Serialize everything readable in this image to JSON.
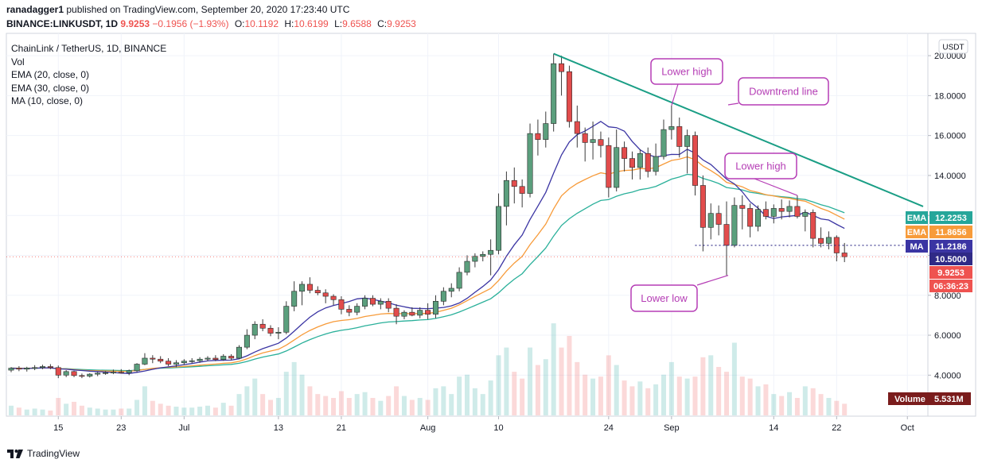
{
  "header": {
    "publisher": "ranadagger1",
    "published_text": "published on TradingView.com, September 20, 2020 17:23:40 UTC",
    "symbol_line": "BINANCE:LINKUSDT, 1D",
    "price": "9.9253",
    "change": "−0.1956 (−1.93%)",
    "o_label": "O:",
    "o_value": "10.1192",
    "h_label": "H:",
    "h_value": "10.6199",
    "l_label": "L:",
    "l_value": "9.6588",
    "c_label": "C:",
    "c_value": "9.9253"
  },
  "legend": {
    "title": "ChainLink / TetherUS, 1D, BINANCE",
    "vol": "Vol",
    "ema20": "EMA (20, close, 0)",
    "ema30": "EMA (30, close, 0)",
    "ma10": "MA (10, close, 0)"
  },
  "currency_button": "USDT",
  "footer": {
    "brand": "TradingView"
  },
  "colors": {
    "up": "#26a69a",
    "down": "#ef5350",
    "candle_up_body": "#5b9f7d",
    "candle_down_body": "#e24c4c",
    "ema20": "#f79b3a",
    "ema30": "#2ab09a",
    "ma10": "#3b35a3",
    "trend": "#1a9e85",
    "callout": "#b53db5"
  },
  "chart_data": {
    "type": "candlestick",
    "title": "ChainLink / TetherUS, 1D, BINANCE",
    "ylim": [
      2.9,
      20.6
    ],
    "y_ticks": [
      "20.0000",
      "18.0000",
      "16.0000",
      "14.0000",
      "12.0000",
      "10.0000",
      "8.0000",
      "6.0000",
      "4.0000"
    ],
    "x_ticks": [
      "15",
      "23",
      "Jul",
      "13",
      "21",
      "Aug",
      "10",
      "24",
      "Sep",
      "14",
      "22",
      "Oct"
    ],
    "date_range": [
      "2020-06-09",
      "2020-10-03"
    ],
    "candles": [
      {
        "date": "2020-06-09",
        "o": 4.25,
        "h": 4.4,
        "l": 4.15,
        "c": 4.35
      },
      {
        "date": "2020-06-10",
        "o": 4.35,
        "h": 4.45,
        "l": 4.2,
        "c": 4.3
      },
      {
        "date": "2020-06-11",
        "o": 4.3,
        "h": 4.42,
        "l": 4.18,
        "c": 4.36
      },
      {
        "date": "2020-06-12",
        "o": 4.36,
        "h": 4.5,
        "l": 4.25,
        "c": 4.38
      },
      {
        "date": "2020-06-13",
        "o": 4.38,
        "h": 4.52,
        "l": 4.3,
        "c": 4.43
      },
      {
        "date": "2020-06-14",
        "o": 4.43,
        "h": 4.55,
        "l": 4.3,
        "c": 4.38
      },
      {
        "date": "2020-06-15",
        "o": 4.38,
        "h": 4.48,
        "l": 3.85,
        "c": 4.0
      },
      {
        "date": "2020-06-16",
        "o": 4.0,
        "h": 4.25,
        "l": 3.9,
        "c": 4.18
      },
      {
        "date": "2020-06-17",
        "o": 4.18,
        "h": 4.22,
        "l": 3.9,
        "c": 3.98
      },
      {
        "date": "2020-06-18",
        "o": 3.98,
        "h": 4.08,
        "l": 3.85,
        "c": 3.95
      },
      {
        "date": "2020-06-19",
        "o": 3.95,
        "h": 4.1,
        "l": 3.88,
        "c": 4.05
      },
      {
        "date": "2020-06-20",
        "o": 4.05,
        "h": 4.15,
        "l": 3.95,
        "c": 4.1
      },
      {
        "date": "2020-06-21",
        "o": 4.1,
        "h": 4.2,
        "l": 4.02,
        "c": 4.12
      },
      {
        "date": "2020-06-22",
        "o": 4.12,
        "h": 4.28,
        "l": 4.05,
        "c": 4.15
      },
      {
        "date": "2020-06-23",
        "o": 4.15,
        "h": 4.3,
        "l": 4.08,
        "c": 4.12
      },
      {
        "date": "2020-06-24",
        "o": 4.12,
        "h": 4.28,
        "l": 4.0,
        "c": 4.22
      },
      {
        "date": "2020-06-25",
        "o": 4.22,
        "h": 4.6,
        "l": 4.15,
        "c": 4.55
      },
      {
        "date": "2020-06-26",
        "o": 4.55,
        "h": 5.1,
        "l": 4.5,
        "c": 4.85
      },
      {
        "date": "2020-06-27",
        "o": 4.85,
        "h": 5.0,
        "l": 4.6,
        "c": 4.8
      },
      {
        "date": "2020-06-28",
        "o": 4.8,
        "h": 4.95,
        "l": 4.6,
        "c": 4.7
      },
      {
        "date": "2020-06-29",
        "o": 4.7,
        "h": 4.85,
        "l": 4.45,
        "c": 4.55
      },
      {
        "date": "2020-06-30",
        "o": 4.55,
        "h": 4.75,
        "l": 4.4,
        "c": 4.62
      },
      {
        "date": "2020-07-01",
        "o": 4.62,
        "h": 4.8,
        "l": 4.52,
        "c": 4.7
      },
      {
        "date": "2020-07-02",
        "o": 4.7,
        "h": 4.85,
        "l": 4.6,
        "c": 4.72
      },
      {
        "date": "2020-07-03",
        "o": 4.72,
        "h": 4.9,
        "l": 4.62,
        "c": 4.8
      },
      {
        "date": "2020-07-04",
        "o": 4.8,
        "h": 4.95,
        "l": 4.7,
        "c": 4.85
      },
      {
        "date": "2020-07-05",
        "o": 4.85,
        "h": 5.0,
        "l": 4.7,
        "c": 4.78
      },
      {
        "date": "2020-07-06",
        "o": 4.78,
        "h": 5.05,
        "l": 4.72,
        "c": 4.95
      },
      {
        "date": "2020-07-07",
        "o": 4.95,
        "h": 5.05,
        "l": 4.75,
        "c": 4.85
      },
      {
        "date": "2020-07-08",
        "o": 4.85,
        "h": 5.5,
        "l": 4.8,
        "c": 5.4
      },
      {
        "date": "2020-07-09",
        "o": 5.4,
        "h": 6.3,
        "l": 5.3,
        "c": 6.0
      },
      {
        "date": "2020-07-10",
        "o": 6.0,
        "h": 6.7,
        "l": 5.8,
        "c": 6.55
      },
      {
        "date": "2020-07-11",
        "o": 6.55,
        "h": 6.8,
        "l": 6.2,
        "c": 6.35
      },
      {
        "date": "2020-07-12",
        "o": 6.35,
        "h": 6.5,
        "l": 5.95,
        "c": 6.1
      },
      {
        "date": "2020-07-13",
        "o": 6.1,
        "h": 6.4,
        "l": 5.8,
        "c": 6.15
      },
      {
        "date": "2020-07-14",
        "o": 6.15,
        "h": 7.7,
        "l": 6.05,
        "c": 7.45
      },
      {
        "date": "2020-07-15",
        "o": 7.45,
        "h": 8.7,
        "l": 7.2,
        "c": 8.2
      },
      {
        "date": "2020-07-16",
        "o": 8.2,
        "h": 8.7,
        "l": 7.5,
        "c": 8.55
      },
      {
        "date": "2020-07-17",
        "o": 8.55,
        "h": 8.9,
        "l": 8.1,
        "c": 8.25
      },
      {
        "date": "2020-07-18",
        "o": 8.25,
        "h": 8.45,
        "l": 8.0,
        "c": 8.12
      },
      {
        "date": "2020-07-19",
        "o": 8.12,
        "h": 8.3,
        "l": 7.6,
        "c": 7.95
      },
      {
        "date": "2020-07-20",
        "o": 7.95,
        "h": 8.05,
        "l": 7.5,
        "c": 7.78
      },
      {
        "date": "2020-07-21",
        "o": 7.78,
        "h": 7.95,
        "l": 7.05,
        "c": 7.3
      },
      {
        "date": "2020-07-22",
        "o": 7.3,
        "h": 7.5,
        "l": 6.95,
        "c": 7.15
      },
      {
        "date": "2020-07-23",
        "o": 7.15,
        "h": 7.6,
        "l": 7.0,
        "c": 7.45
      },
      {
        "date": "2020-07-24",
        "o": 7.45,
        "h": 8.0,
        "l": 7.3,
        "c": 7.85
      },
      {
        "date": "2020-07-25",
        "o": 7.85,
        "h": 8.0,
        "l": 7.45,
        "c": 7.55
      },
      {
        "date": "2020-07-26",
        "o": 7.55,
        "h": 7.85,
        "l": 7.3,
        "c": 7.7
      },
      {
        "date": "2020-07-27",
        "o": 7.7,
        "h": 7.85,
        "l": 7.15,
        "c": 7.35
      },
      {
        "date": "2020-07-28",
        "o": 7.35,
        "h": 7.55,
        "l": 6.55,
        "c": 6.95
      },
      {
        "date": "2020-07-29",
        "o": 6.95,
        "h": 7.25,
        "l": 6.8,
        "c": 7.15
      },
      {
        "date": "2020-07-30",
        "o": 7.15,
        "h": 7.4,
        "l": 6.95,
        "c": 7.0
      },
      {
        "date": "2020-07-31",
        "o": 7.0,
        "h": 7.4,
        "l": 6.85,
        "c": 7.25
      },
      {
        "date": "2020-08-01",
        "o": 7.25,
        "h": 7.6,
        "l": 6.8,
        "c": 7.05
      },
      {
        "date": "2020-08-02",
        "o": 7.05,
        "h": 8.0,
        "l": 6.85,
        "c": 7.7
      },
      {
        "date": "2020-08-03",
        "o": 7.7,
        "h": 8.4,
        "l": 7.5,
        "c": 8.2
      },
      {
        "date": "2020-08-04",
        "o": 8.2,
        "h": 8.6,
        "l": 7.9,
        "c": 8.35
      },
      {
        "date": "2020-08-05",
        "o": 8.35,
        "h": 9.4,
        "l": 8.2,
        "c": 9.15
      },
      {
        "date": "2020-08-06",
        "o": 9.15,
        "h": 10.0,
        "l": 9.0,
        "c": 9.7
      },
      {
        "date": "2020-08-07",
        "o": 9.7,
        "h": 10.1,
        "l": 9.4,
        "c": 9.95
      },
      {
        "date": "2020-08-08",
        "o": 9.95,
        "h": 10.2,
        "l": 9.7,
        "c": 10.05
      },
      {
        "date": "2020-08-09",
        "o": 10.05,
        "h": 10.8,
        "l": 9.0,
        "c": 10.25
      },
      {
        "date": "2020-08-10",
        "o": 10.25,
        "h": 13.1,
        "l": 10.05,
        "c": 12.45
      },
      {
        "date": "2020-08-11",
        "o": 12.45,
        "h": 14.2,
        "l": 11.5,
        "c": 13.75
      },
      {
        "date": "2020-08-12",
        "o": 13.75,
        "h": 14.4,
        "l": 12.6,
        "c": 13.45
      },
      {
        "date": "2020-08-13",
        "o": 13.45,
        "h": 13.8,
        "l": 12.4,
        "c": 13.1
      },
      {
        "date": "2020-08-14",
        "o": 13.1,
        "h": 16.6,
        "l": 12.9,
        "c": 16.1
      },
      {
        "date": "2020-08-15",
        "o": 16.1,
        "h": 16.8,
        "l": 15.0,
        "c": 15.8
      },
      {
        "date": "2020-08-16",
        "o": 15.8,
        "h": 17.2,
        "l": 15.4,
        "c": 16.6
      },
      {
        "date": "2020-08-17",
        "o": 16.6,
        "h": 20.1,
        "l": 16.2,
        "c": 19.6
      },
      {
        "date": "2020-08-18",
        "o": 19.6,
        "h": 20.0,
        "l": 18.0,
        "c": 19.2
      },
      {
        "date": "2020-08-19",
        "o": 19.2,
        "h": 19.5,
        "l": 16.4,
        "c": 16.7
      },
      {
        "date": "2020-08-20",
        "o": 16.7,
        "h": 17.5,
        "l": 15.4,
        "c": 16.1
      },
      {
        "date": "2020-08-21",
        "o": 16.1,
        "h": 16.4,
        "l": 14.7,
        "c": 15.65
      },
      {
        "date": "2020-08-22",
        "o": 15.65,
        "h": 16.7,
        "l": 14.8,
        "c": 15.8
      },
      {
        "date": "2020-08-23",
        "o": 15.8,
        "h": 16.2,
        "l": 14.9,
        "c": 15.5
      },
      {
        "date": "2020-08-24",
        "o": 15.5,
        "h": 15.9,
        "l": 12.9,
        "c": 13.4
      },
      {
        "date": "2020-08-25",
        "o": 13.4,
        "h": 16.3,
        "l": 13.2,
        "c": 15.4
      },
      {
        "date": "2020-08-26",
        "o": 15.4,
        "h": 15.7,
        "l": 14.2,
        "c": 14.85
      },
      {
        "date": "2020-08-27",
        "o": 14.85,
        "h": 15.2,
        "l": 13.8,
        "c": 14.4
      },
      {
        "date": "2020-08-28",
        "o": 14.4,
        "h": 15.3,
        "l": 13.8,
        "c": 15.1
      },
      {
        "date": "2020-08-29",
        "o": 15.1,
        "h": 15.4,
        "l": 13.9,
        "c": 14.2
      },
      {
        "date": "2020-08-30",
        "o": 14.2,
        "h": 15.6,
        "l": 14.0,
        "c": 14.95
      },
      {
        "date": "2020-08-31",
        "o": 14.95,
        "h": 16.8,
        "l": 14.8,
        "c": 16.3
      },
      {
        "date": "2020-09-01",
        "o": 16.3,
        "h": 17.5,
        "l": 15.8,
        "c": 16.45
      },
      {
        "date": "2020-09-02",
        "o": 16.45,
        "h": 16.9,
        "l": 14.9,
        "c": 15.45
      },
      {
        "date": "2020-09-03",
        "o": 15.45,
        "h": 16.3,
        "l": 14.1,
        "c": 16.0
      },
      {
        "date": "2020-09-04",
        "o": 16.0,
        "h": 16.2,
        "l": 13.0,
        "c": 13.5
      },
      {
        "date": "2020-09-05",
        "o": 13.5,
        "h": 14.0,
        "l": 10.2,
        "c": 11.4
      },
      {
        "date": "2020-09-06",
        "o": 11.4,
        "h": 12.6,
        "l": 10.8,
        "c": 12.1
      },
      {
        "date": "2020-09-07",
        "o": 12.1,
        "h": 12.5,
        "l": 11.0,
        "c": 11.55
      },
      {
        "date": "2020-09-08",
        "o": 11.55,
        "h": 12.7,
        "l": 9.0,
        "c": 10.5
      },
      {
        "date": "2020-09-09",
        "o": 10.5,
        "h": 12.9,
        "l": 10.4,
        "c": 12.5
      },
      {
        "date": "2020-09-10",
        "o": 12.5,
        "h": 13.0,
        "l": 11.3,
        "c": 12.35
      },
      {
        "date": "2020-09-11",
        "o": 12.35,
        "h": 12.6,
        "l": 10.9,
        "c": 11.45
      },
      {
        "date": "2020-09-12",
        "o": 11.45,
        "h": 12.5,
        "l": 11.2,
        "c": 12.3
      },
      {
        "date": "2020-09-13",
        "o": 12.3,
        "h": 12.7,
        "l": 11.8,
        "c": 11.95
      },
      {
        "date": "2020-09-14",
        "o": 11.95,
        "h": 12.55,
        "l": 11.6,
        "c": 12.35
      },
      {
        "date": "2020-09-15",
        "o": 12.35,
        "h": 12.8,
        "l": 11.8,
        "c": 12.2
      },
      {
        "date": "2020-09-16",
        "o": 12.2,
        "h": 12.75,
        "l": 11.9,
        "c": 12.45
      },
      {
        "date": "2020-09-17",
        "o": 12.45,
        "h": 13.0,
        "l": 11.85,
        "c": 11.95
      },
      {
        "date": "2020-09-18",
        "o": 11.95,
        "h": 12.3,
        "l": 11.2,
        "c": 12.15
      },
      {
        "date": "2020-09-19",
        "o": 12.15,
        "h": 12.3,
        "l": 10.4,
        "c": 10.85
      },
      {
        "date": "2020-09-20",
        "o": 10.85,
        "h": 11.4,
        "l": 10.4,
        "c": 10.6
      },
      {
        "date": "2020-09-21",
        "o": 10.6,
        "h": 11.2,
        "l": 10.3,
        "c": 10.9
      },
      {
        "date": "2020-09-22",
        "o": 10.9,
        "h": 11.0,
        "l": 9.7,
        "c": 10.12
      },
      {
        "date": "2020-09-23",
        "o": 10.12,
        "h": 10.62,
        "l": 9.66,
        "c": 9.93
      }
    ],
    "volume": [
      0.1,
      0.08,
      0.06,
      0.07,
      0.06,
      0.05,
      0.18,
      0.12,
      0.14,
      0.1,
      0.08,
      0.07,
      0.06,
      0.06,
      0.07,
      0.07,
      0.16,
      0.3,
      0.15,
      0.12,
      0.1,
      0.09,
      0.08,
      0.08,
      0.09,
      0.1,
      0.08,
      0.13,
      0.1,
      0.22,
      0.3,
      0.38,
      0.22,
      0.16,
      0.18,
      0.45,
      0.55,
      0.42,
      0.3,
      0.22,
      0.2,
      0.18,
      0.25,
      0.18,
      0.22,
      0.24,
      0.18,
      0.15,
      0.2,
      0.3,
      0.2,
      0.16,
      0.18,
      0.16,
      0.28,
      0.3,
      0.22,
      0.4,
      0.42,
      0.28,
      0.22,
      0.36,
      0.62,
      0.7,
      0.45,
      0.38,
      0.7,
      0.52,
      0.58,
      0.95,
      0.7,
      0.82,
      0.55,
      0.42,
      0.38,
      0.4,
      0.62,
      0.52,
      0.36,
      0.3,
      0.35,
      0.28,
      0.32,
      0.42,
      0.55,
      0.4,
      0.38,
      0.4,
      0.6,
      0.62,
      0.5,
      0.45,
      0.75,
      0.4,
      0.38,
      0.3,
      0.32,
      0.22,
      0.2,
      0.24,
      0.18,
      0.3,
      0.28,
      0.22,
      0.18,
      0.15,
      0.12
    ],
    "indicators": [
      {
        "name": "EMA (20, close, 0)",
        "last": "12.2253"
      },
      {
        "name": "EMA (30, close, 0)",
        "last": "11.8656"
      },
      {
        "name": "MA (10, close, 0)",
        "last": "11.2186"
      }
    ],
    "price_labels": [
      {
        "label": "EMA",
        "value": "12.2253",
        "color": "#26a69a"
      },
      {
        "label": "EMA",
        "value": "11.8656",
        "color": "#f79b3a"
      },
      {
        "label": "MA",
        "value": "11.2186",
        "color": "#3b35a3"
      },
      {
        "label": "",
        "value": "10.5000",
        "color": "#2f2a86"
      },
      {
        "label": "",
        "value": "9.9253",
        "color": "#ef5350"
      },
      {
        "label": "",
        "value": "06:36:23",
        "color": "#ef5350"
      }
    ],
    "horizontal_level": 10.5,
    "trendline": {
      "from": {
        "date": "2020-08-17",
        "y": 20.1
      },
      "to": {
        "date": "2020-10-03",
        "y": 12.45
      }
    },
    "volume_label": {
      "label": "Volume",
      "value": "5.531M"
    },
    "annotations": [
      {
        "text": "Lower high",
        "target": {
          "date": "2020-09-01",
          "y": 17.5
        }
      },
      {
        "text": "Downtrend line"
      },
      {
        "text": "Lower high",
        "target": {
          "date": "2020-09-17",
          "y": 13.0
        }
      },
      {
        "text": "Lower low",
        "target": {
          "date": "2020-09-08",
          "y": 9.0
        }
      }
    ]
  }
}
